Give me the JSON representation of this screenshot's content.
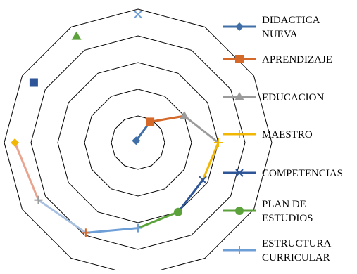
{
  "chart_data": {
    "type": "radar",
    "title": "",
    "rlim": [
      0,
      5
    ],
    "grid": true,
    "grid_shape": "dodecagon",
    "legend_position": "right",
    "points": [
      {
        "r": 0.1,
        "segment": 0
      },
      {
        "r": 0.9,
        "segment": 1
      },
      {
        "r": 2.0,
        "segment": 2
      },
      {
        "r": 3.0,
        "segment": 3
      },
      {
        "r": 2.8,
        "segment": 4
      },
      {
        "r": 3.0,
        "segment": 5
      },
      {
        "r": 3.2,
        "segment": 6
      },
      {
        "r": 3.9,
        "segment": 7
      },
      {
        "r": 4.3,
        "segment": 8
      },
      {
        "r": 4.6,
        "segment": 9
      },
      {
        "r": 4.5,
        "segment": 10
      },
      {
        "r": 4.6,
        "segment": 11
      },
      {
        "r": 4.8,
        "segment": 12
      }
    ],
    "series": [
      {
        "name": "DIDACTICA NUEVA",
        "color": "#3f6fa6",
        "marker": "diamond"
      },
      {
        "name": "APRENDIZAJE",
        "color": "#d5692a",
        "marker": "square"
      },
      {
        "name": "EDUCACION",
        "color": "#9b9b9b",
        "marker": "triangle"
      },
      {
        "name": "MAESTRO",
        "color": "#f2b705",
        "marker": "plus"
      },
      {
        "name": "COMPETENCIAS",
        "color": "#2e5597",
        "marker": "x"
      },
      {
        "name": "PLAN DE ESTUDIOS",
        "color": "#5ba23a",
        "marker": "circle"
      },
      {
        "name": "ESTRUCTURA CURRICULAR",
        "color": "#6d9ed6",
        "marker": "plus"
      }
    ],
    "extra_segment_colors": [
      "#a8c0e0",
      "#e8a48f"
    ],
    "legend_lines": [
      [
        "DIDACTICA",
        "NUEVA"
      ],
      [
        "APRENDIZAJE"
      ],
      [
        "EDUCACION"
      ],
      [
        "MAESTRO"
      ],
      [
        "COMPETENCIAS"
      ],
      [
        "PLAN DE",
        "ESTUDIOS"
      ],
      [
        "ESTRUCTURA",
        "CURRICULAR"
      ]
    ]
  }
}
